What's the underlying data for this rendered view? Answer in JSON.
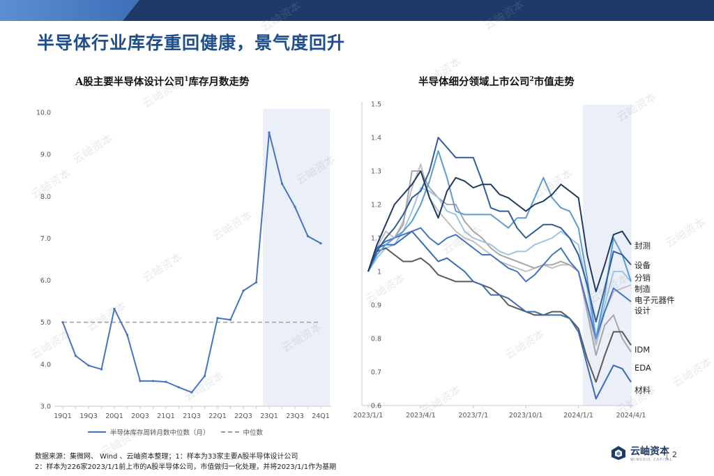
{
  "page": {
    "title": "半导体行业库存重回健康，景气度回升",
    "footnote_1": "数据来源：集微网、 Wind 、云岫资本整理；1：样本为33家主要A股半导体设计公司",
    "footnote_2": "2：样本为226家2023/1/1前上市的A股半导体公司，市值做归一化处理，并将2023/1/1作为基期",
    "logo_text": "云岫资本",
    "logo_sub": "WINSOUL CAPITAL",
    "page_number": "2",
    "watermark": "云岫资本"
  },
  "chart_data": [
    {
      "type": "line",
      "title": "A股主要半导体设计公司",
      "title_sup": "1",
      "title_suffix": "库存月数走势",
      "categories": [
        "19Q1",
        "19Q2",
        "19Q3",
        "19Q4",
        "20Q1",
        "20Q2",
        "20Q3",
        "20Q4",
        "21Q1",
        "21Q2",
        "21Q3",
        "21Q4",
        "22Q1",
        "22Q2",
        "22Q3",
        "22Q4",
        "23Q1",
        "23Q2",
        "23Q3",
        "23Q4",
        "24Q1"
      ],
      "tick_labels": [
        "19Q1",
        "19Q3",
        "20Q1",
        "20Q3",
        "21Q1",
        "21Q3",
        "22Q1",
        "22Q3",
        "23Q1",
        "23Q3",
        "24Q1"
      ],
      "series": [
        {
          "name": "半导体库存周转月数中位数（月）",
          "color": "#4472c4",
          "values": [
            5.0,
            4.2,
            3.97,
            3.88,
            5.32,
            4.7,
            3.6,
            3.6,
            3.58,
            3.45,
            3.33,
            3.72,
            5.1,
            5.06,
            5.75,
            5.95,
            9.52,
            8.3,
            7.75,
            7.05,
            6.88
          ]
        },
        {
          "name": "中位数",
          "color": "#a6a6a6",
          "dashed": true,
          "values": [
            5.0,
            5.0,
            5.0,
            5.0,
            5.0,
            5.0,
            5.0,
            5.0,
            5.0,
            5.0,
            5.0,
            5.0,
            5.0,
            5.0,
            5.0,
            5.0,
            5.0,
            5.0,
            5.0,
            5.0,
            5.0
          ]
        }
      ],
      "ylim": [
        3.0,
        10.0
      ],
      "y_ticks": [
        "3.0",
        "4.0",
        "5.0",
        "6.0",
        "7.0",
        "8.0",
        "9.0",
        "10.0"
      ],
      "highlight_from_category": "23Q1",
      "grid": false,
      "legend": "bottom"
    },
    {
      "type": "line",
      "title": "半导体细分领域上市公司",
      "title_sup": "2",
      "title_suffix": "市值走势",
      "x": [
        "2023/1/1",
        "2023/1/15",
        "2023/2/1",
        "2023/2/15",
        "2023/3/1",
        "2023/3/15",
        "2023/4/1",
        "2023/4/15",
        "2023/5/1",
        "2023/5/15",
        "2023/6/1",
        "2023/6/15",
        "2023/7/1",
        "2023/7/15",
        "2023/8/1",
        "2023/8/15",
        "2023/9/1",
        "2023/9/15",
        "2023/10/1",
        "2023/10/15",
        "2023/11/1",
        "2023/11/15",
        "2023/12/1",
        "2023/12/15",
        "2024/1/1",
        "2024/1/15",
        "2024/2/1",
        "2024/2/15",
        "2024/3/1",
        "2024/3/15",
        "2024/4/1"
      ],
      "tick_labels": [
        "2023/1/1",
        "2023/4/1",
        "2023/7/1",
        "2023/10/1",
        "2024/1/1",
        "2024/4/1"
      ],
      "series": [
        {
          "name": "封测",
          "color": "#1f3864",
          "values": [
            1.0,
            1.08,
            1.14,
            1.2,
            1.23,
            1.26,
            1.3,
            1.22,
            1.16,
            1.24,
            1.28,
            1.27,
            1.25,
            1.26,
            1.26,
            1.23,
            1.22,
            1.2,
            1.18,
            1.2,
            1.21,
            1.23,
            1.26,
            1.24,
            1.22,
            1.05,
            0.94,
            1.02,
            1.11,
            1.12,
            1.08
          ]
        },
        {
          "name": "设备",
          "color": "#2e5c9a",
          "values": [
            1.0,
            1.06,
            1.1,
            1.13,
            1.17,
            1.22,
            1.24,
            1.3,
            1.4,
            1.37,
            1.34,
            1.34,
            1.34,
            1.27,
            1.19,
            1.18,
            1.18,
            1.13,
            1.1,
            1.12,
            1.14,
            1.14,
            1.13,
            1.1,
            1.05,
            0.96,
            0.85,
            0.95,
            1.06,
            1.05,
            1.02
          ]
        },
        {
          "name": "分销",
          "color": "#5b9bd5",
          "values": [
            1.0,
            1.05,
            1.08,
            1.1,
            1.12,
            1.15,
            1.2,
            1.27,
            1.36,
            1.28,
            1.18,
            1.17,
            1.17,
            1.17,
            1.17,
            1.15,
            1.13,
            1.16,
            1.16,
            1.22,
            1.28,
            1.22,
            1.19,
            1.18,
            1.13,
            0.98,
            0.8,
            0.93,
            1.1,
            1.05,
            0.97
          ]
        },
        {
          "name": "制造",
          "color": "#9dc3e6",
          "values": [
            1.0,
            1.04,
            1.07,
            1.08,
            1.12,
            1.18,
            1.25,
            1.24,
            1.22,
            1.18,
            1.17,
            1.12,
            1.1,
            1.09,
            1.08,
            1.06,
            1.05,
            1.06,
            1.06,
            1.08,
            1.09,
            1.1,
            1.12,
            1.1,
            1.08,
            0.95,
            0.79,
            0.9,
            1.0,
            1.0,
            0.97
          ]
        },
        {
          "name": "电子元器件",
          "color": "#bfbfbf",
          "values": [
            1.0,
            1.07,
            1.12,
            1.1,
            1.15,
            1.25,
            1.32,
            1.22,
            1.18,
            1.15,
            1.12,
            1.1,
            1.09,
            1.07,
            1.05,
            1.03,
            1.02,
            1.01,
            1.0,
            1.01,
            1.02,
            1.01,
            1.02,
            1.02,
            1.0,
            0.9,
            0.78,
            0.88,
            0.94,
            0.95,
            0.96
          ]
        },
        {
          "name": "设计",
          "color": "#4472c4",
          "values": [
            1.0,
            1.07,
            1.09,
            1.1,
            1.11,
            1.12,
            1.13,
            1.1,
            1.08,
            1.1,
            1.11,
            1.09,
            1.07,
            1.05,
            1.05,
            1.03,
            1.01,
            1.0,
            0.97,
            0.99,
            1.02,
            1.05,
            1.07,
            1.03,
            1.0,
            0.9,
            0.8,
            0.88,
            0.95,
            0.93,
            0.91
          ]
        },
        {
          "name": "IDM",
          "color": "#595959",
          "values": [
            1.0,
            1.06,
            1.07,
            1.05,
            1.03,
            1.03,
            1.04,
            1.02,
            0.99,
            0.98,
            0.97,
            0.97,
            0.97,
            0.96,
            0.95,
            0.93,
            0.9,
            0.89,
            0.88,
            0.87,
            0.87,
            0.88,
            0.88,
            0.86,
            0.83,
            0.74,
            0.67,
            0.75,
            0.82,
            0.82,
            0.78
          ]
        },
        {
          "name": "EDA",
          "color": "#3a6bb5",
          "values": [
            1.0,
            1.07,
            1.08,
            1.08,
            1.1,
            1.12,
            1.09,
            1.06,
            1.03,
            1.04,
            1.02,
            1.0,
            0.97,
            0.96,
            0.93,
            0.93,
            0.92,
            0.9,
            0.88,
            0.88,
            0.87,
            0.87,
            0.87,
            0.86,
            0.82,
            0.72,
            0.62,
            0.67,
            0.72,
            0.71,
            0.67
          ]
        },
        {
          "name": "材料",
          "color": "#a6a6a6",
          "values": [
            1.0,
            1.07,
            1.09,
            1.1,
            1.14,
            1.3,
            1.3,
            1.25,
            1.22,
            1.2,
            1.2,
            1.15,
            1.12,
            1.1,
            1.07,
            1.05,
            1.04,
            1.03,
            1.02,
            1.01,
            1.02,
            1.02,
            1.03,
            1.02,
            1.0,
            0.88,
            0.75,
            0.84,
            0.87,
            0.8,
            0.76
          ]
        }
      ],
      "ylim": [
        0.6,
        1.5
      ],
      "y_ticks": [
        "0.6",
        "0.7",
        "0.8",
        "0.9",
        "1",
        "1.1",
        "1.2",
        "1.3",
        "1.4",
        "1.5"
      ],
      "highlight_from_x": "2024/1/15",
      "grid": false,
      "legend": "right"
    }
  ]
}
